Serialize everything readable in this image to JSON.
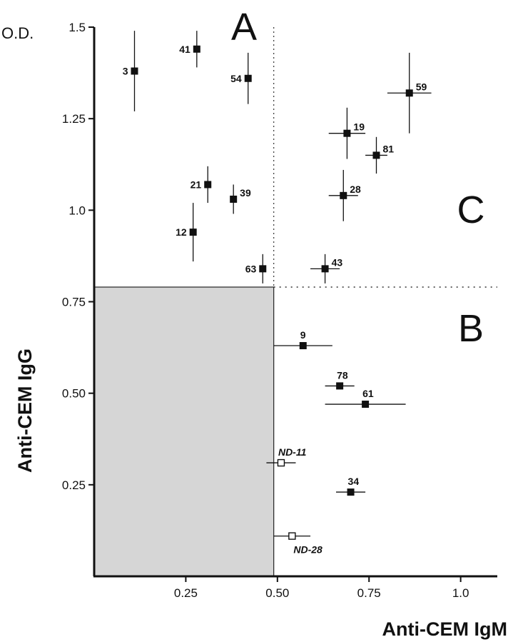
{
  "chart_data": {
    "type": "scatter",
    "title": "",
    "xlabel": "Anti-CEM IgM",
    "ylabel": "Anti-CEM IgG",
    "yunit": "O.D.",
    "xlim": [
      0.0,
      1.1
    ],
    "ylim": [
      0.0,
      1.5
    ],
    "xticks": [
      0.25,
      0.5,
      0.75,
      1.0
    ],
    "xtick_labels": [
      "0.25",
      "0.50",
      "0.75",
      "1.0"
    ],
    "yticks": [
      0.25,
      0.5,
      0.75,
      1.0,
      1.25,
      1.5
    ],
    "ytick_labels": [
      "0.25",
      "0.50",
      "0.75",
      "1.0",
      "1.25",
      "1.5"
    ],
    "region_labels": [
      "A",
      "B",
      "C"
    ],
    "thresholds": {
      "igm": 0.49,
      "igg": 0.79
    },
    "points": [
      {
        "label": "3",
        "x": 0.11,
        "y": 1.38,
        "xerr": 0.0,
        "yerr": 0.11,
        "filled": true,
        "label_side": "left"
      },
      {
        "label": "41",
        "x": 0.28,
        "y": 1.44,
        "xerr": 0.0,
        "yerr": 0.05,
        "filled": true,
        "label_side": "left"
      },
      {
        "label": "54",
        "x": 0.42,
        "y": 1.36,
        "xerr": 0.0,
        "yerr": 0.07,
        "filled": true,
        "label_side": "left"
      },
      {
        "label": "59",
        "x": 0.86,
        "y": 1.32,
        "xerr": 0.06,
        "yerr": 0.11,
        "filled": true,
        "label_side": "right"
      },
      {
        "label": "19",
        "x": 0.69,
        "y": 1.21,
        "xerr": 0.05,
        "yerr": 0.07,
        "filled": true,
        "label_side": "right"
      },
      {
        "label": "81",
        "x": 0.77,
        "y": 1.15,
        "xerr": 0.03,
        "yerr": 0.05,
        "filled": true,
        "label_side": "right"
      },
      {
        "label": "21",
        "x": 0.31,
        "y": 1.07,
        "xerr": 0.0,
        "yerr": 0.05,
        "filled": true,
        "label_side": "left"
      },
      {
        "label": "28",
        "x": 0.68,
        "y": 1.04,
        "xerr": 0.04,
        "yerr": 0.07,
        "filled": true,
        "label_side": "right"
      },
      {
        "label": "39",
        "x": 0.38,
        "y": 1.03,
        "xerr": 0.0,
        "yerr": 0.04,
        "filled": true,
        "label_side": "right"
      },
      {
        "label": "12",
        "x": 0.27,
        "y": 0.94,
        "xerr": 0.0,
        "yerr": 0.08,
        "filled": true,
        "label_side": "left"
      },
      {
        "label": "63",
        "x": 0.46,
        "y": 0.84,
        "xerr": 0.0,
        "yerr": 0.04,
        "filled": true,
        "label_side": "left"
      },
      {
        "label": "43",
        "x": 0.63,
        "y": 0.84,
        "xerr": 0.04,
        "yerr": 0.04,
        "filled": true,
        "label_side": "right"
      },
      {
        "label": "9",
        "x": 0.57,
        "y": 0.63,
        "xerr": 0.08,
        "yerr": 0.0,
        "filled": true,
        "label_side": "above"
      },
      {
        "label": "78",
        "x": 0.67,
        "y": 0.52,
        "xerr": 0.04,
        "yerr": 0.0,
        "filled": true,
        "label_side": "above"
      },
      {
        "label": "61",
        "x": 0.74,
        "y": 0.47,
        "xerr": 0.11,
        "yerr": 0.0,
        "filled": true,
        "label_side": "above"
      },
      {
        "label": "ND-11",
        "x": 0.51,
        "y": 0.31,
        "xerr": 0.04,
        "yerr": 0.0,
        "filled": false,
        "label_side": "above"
      },
      {
        "label": "34",
        "x": 0.7,
        "y": 0.23,
        "xerr": 0.04,
        "yerr": 0.0,
        "filled": true,
        "label_side": "above"
      },
      {
        "label": "ND-28",
        "x": 0.54,
        "y": 0.11,
        "xerr": 0.05,
        "yerr": 0.0,
        "filled": false,
        "label_side": "below"
      }
    ]
  }
}
